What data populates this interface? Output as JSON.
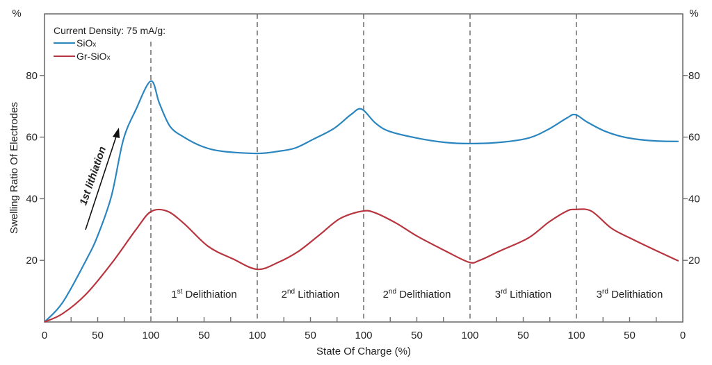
{
  "chart_data": {
    "type": "line",
    "title": "",
    "xlabel": "State Of Charge (%)",
    "ylabel": "Swelling Ratio Of Electrodes",
    "y_unit_label": "%",
    "ylim": [
      0,
      100
    ],
    "yticks": [
      20,
      40,
      60,
      80
    ],
    "secondary_y_axis": {
      "ticks": [
        20,
        40,
        60,
        80
      ],
      "unit_label": "%"
    },
    "x_cumulative_range": [
      0,
      600
    ],
    "x_tick_labels": [
      {
        "pos": 0,
        "label": "0"
      },
      {
        "pos": 50,
        "label": "50"
      },
      {
        "pos": 100,
        "label": "100"
      },
      {
        "pos": 150,
        "label": "50"
      },
      {
        "pos": 200,
        "label": "100"
      },
      {
        "pos": 250,
        "label": "50"
      },
      {
        "pos": 300,
        "label": "100"
      },
      {
        "pos": 350,
        "label": "50"
      },
      {
        "pos": 400,
        "label": "100"
      },
      {
        "pos": 450,
        "label": "50"
      },
      {
        "pos": 500,
        "label": "100"
      },
      {
        "pos": 550,
        "label": "50"
      },
      {
        "pos": 600,
        "label": "0"
      }
    ],
    "x_minor_ticks": [
      25,
      75,
      125,
      175,
      225,
      275,
      325,
      375,
      425,
      475,
      525,
      575
    ],
    "phase_boundaries": [
      100,
      200,
      300,
      400,
      500
    ],
    "phases": [
      {
        "pos": 150,
        "num": "1",
        "sup": "st",
        "name": " Delithiation"
      },
      {
        "pos": 250,
        "num": "2",
        "sup": "nd",
        "name": " Lithiation"
      },
      {
        "pos": 350,
        "num": "2",
        "sup": "nd",
        "name": " Delithiation"
      },
      {
        "pos": 450,
        "num": "3",
        "sup": "rd",
        "name": " Lithiation"
      },
      {
        "pos": 550,
        "num": "3",
        "sup": "rd",
        "name": " Delithiation"
      }
    ],
    "legend": {
      "title": "Current Density: 75 mA/g:",
      "placement": "top-left"
    },
    "annotation": {
      "text": "1st lithiation",
      "color": "#2b86c0",
      "arrow": true
    },
    "series": [
      {
        "name": "SiOx",
        "base": "SiO",
        "sub": "x",
        "color": "#2b86c0",
        "x": [
          0,
          17,
          39,
          50,
          63,
          74,
          86,
          100,
          108,
          118,
          131,
          148,
          167,
          200,
          220,
          236,
          252,
          272,
          288,
          298,
          311,
          324,
          350,
          376,
          399,
          428,
          455,
          474,
          491,
          499,
          510,
          527,
          546,
          572,
          596
        ],
        "y": [
          0,
          6.3,
          20,
          28,
          41,
          59,
          69,
          78.2,
          71,
          63.5,
          60,
          57,
          55.4,
          54.7,
          55.4,
          56.5,
          59.2,
          62.8,
          67.3,
          69.1,
          64.6,
          61.9,
          59.7,
          58.3,
          57.9,
          58.3,
          59.7,
          62.6,
          66.2,
          67.3,
          64.9,
          61.9,
          59.9,
          58.8,
          58.6
        ]
      },
      {
        "name": "Gr-SiOx",
        "base": "Gr-SiO",
        "sub": "x",
        "color": "#b8353f",
        "x": [
          0,
          17,
          39,
          63,
          86,
          100,
          115,
          131,
          154,
          177,
          200,
          220,
          239,
          259,
          278,
          299,
          311,
          331,
          350,
          376,
          399,
          409,
          429,
          455,
          474,
          491,
          499,
          514,
          533,
          553,
          576,
          596
        ],
        "y": [
          0,
          2.7,
          9,
          19,
          30,
          35.8,
          36,
          32,
          24.5,
          20.5,
          17.1,
          19.4,
          23,
          28.4,
          33.6,
          36,
          35.4,
          32,
          27.9,
          23.2,
          19.4,
          20,
          23.2,
          27.3,
          32.4,
          36,
          36.5,
          36,
          30.4,
          26.8,
          23,
          19.8
        ]
      }
    ]
  }
}
